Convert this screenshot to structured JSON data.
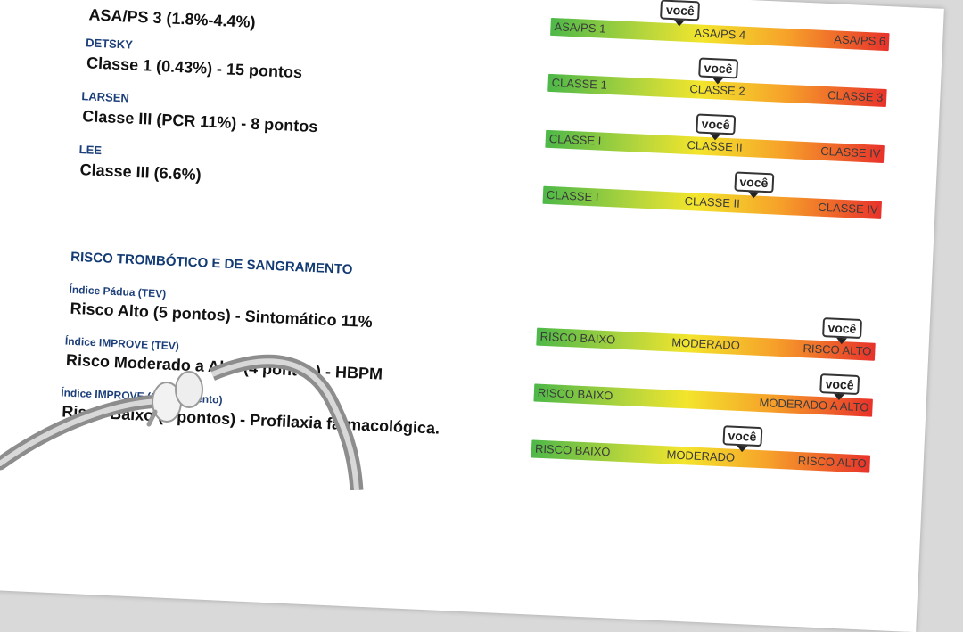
{
  "marker_text": "você",
  "left": {
    "asa_result": "ASA/PS 3 (1.8%-4.4%)",
    "detsky": {
      "label": "DETSKY",
      "value": "Classe 1 (0.43%) - 15 pontos"
    },
    "larsen": {
      "label": "LARSEN",
      "value": "Classe III (PCR 11%) - 8 pontos"
    },
    "lee": {
      "label": "LEE",
      "value": "Classe III (6.6%)"
    },
    "section_title": "RISCO TROMBÓTICO E DE SANGRAMENTO",
    "padua": {
      "label": "Índice Pádua (TEV)",
      "value": "Risco Alto (5 pontos) - Sintomático 11%"
    },
    "improve_tev": {
      "label": "Índice IMPROVE (TEV)",
      "value": "Risco Moderado a Alto (4 pontos) - HBPM"
    },
    "improve_bleed": {
      "label": "Índice IMPROVE (Sangramento)",
      "value": "Risco Baixo (5 pontos) - Profilaxia farmacológica."
    }
  },
  "bars": [
    {
      "low": "ASA/PS 1",
      "mid": "ASA/PS 4",
      "high": "ASA/PS 6"
    },
    {
      "low": "CLASSE 1",
      "mid": "CLASSE 2",
      "high": "CLASSE 3"
    },
    {
      "low": "CLASSE I",
      "mid": "CLASSE II",
      "high": "CLASSE IV"
    },
    {
      "low": "CLASSE I",
      "mid": "CLASSE II",
      "high": "CLASSE IV"
    },
    {
      "low": "RISCO BAIXO",
      "mid": "MODERADO",
      "high": "RISCO ALTO"
    },
    {
      "low": "RISCO BAIXO",
      "high": "MODERADO A ALTO"
    },
    {
      "low": "RISCO BAIXO",
      "mid": "MODERADO",
      "high": "RISCO ALTO"
    }
  ]
}
